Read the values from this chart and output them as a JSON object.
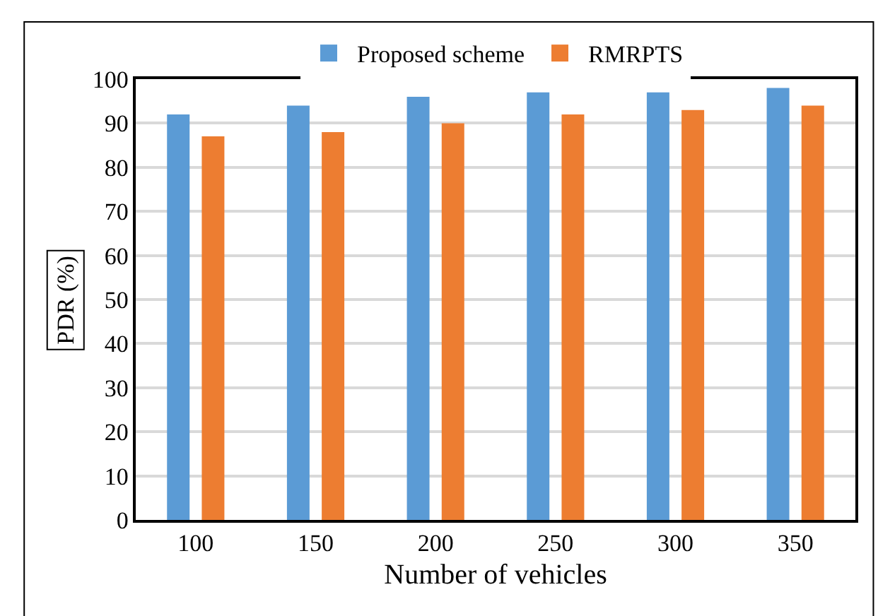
{
  "chart_data": {
    "type": "bar",
    "xlabel": "Number of vehicles",
    "ylabel": "PDR (%)",
    "categories": [
      "100",
      "150",
      "200",
      "250",
      "300",
      "350"
    ],
    "series": [
      {
        "name": "Proposed scheme",
        "color": "#5b9bd5",
        "values": [
          92,
          94,
          96,
          97,
          97,
          98
        ]
      },
      {
        "name": "RMRPTS",
        "color": "#ed7d31",
        "values": [
          87,
          88,
          90,
          92,
          93,
          94
        ]
      }
    ],
    "ylim": [
      0,
      100
    ],
    "yticks": [
      0,
      10,
      20,
      30,
      40,
      50,
      60,
      70,
      80,
      90,
      100
    ],
    "grid": "y",
    "legend": "top"
  }
}
